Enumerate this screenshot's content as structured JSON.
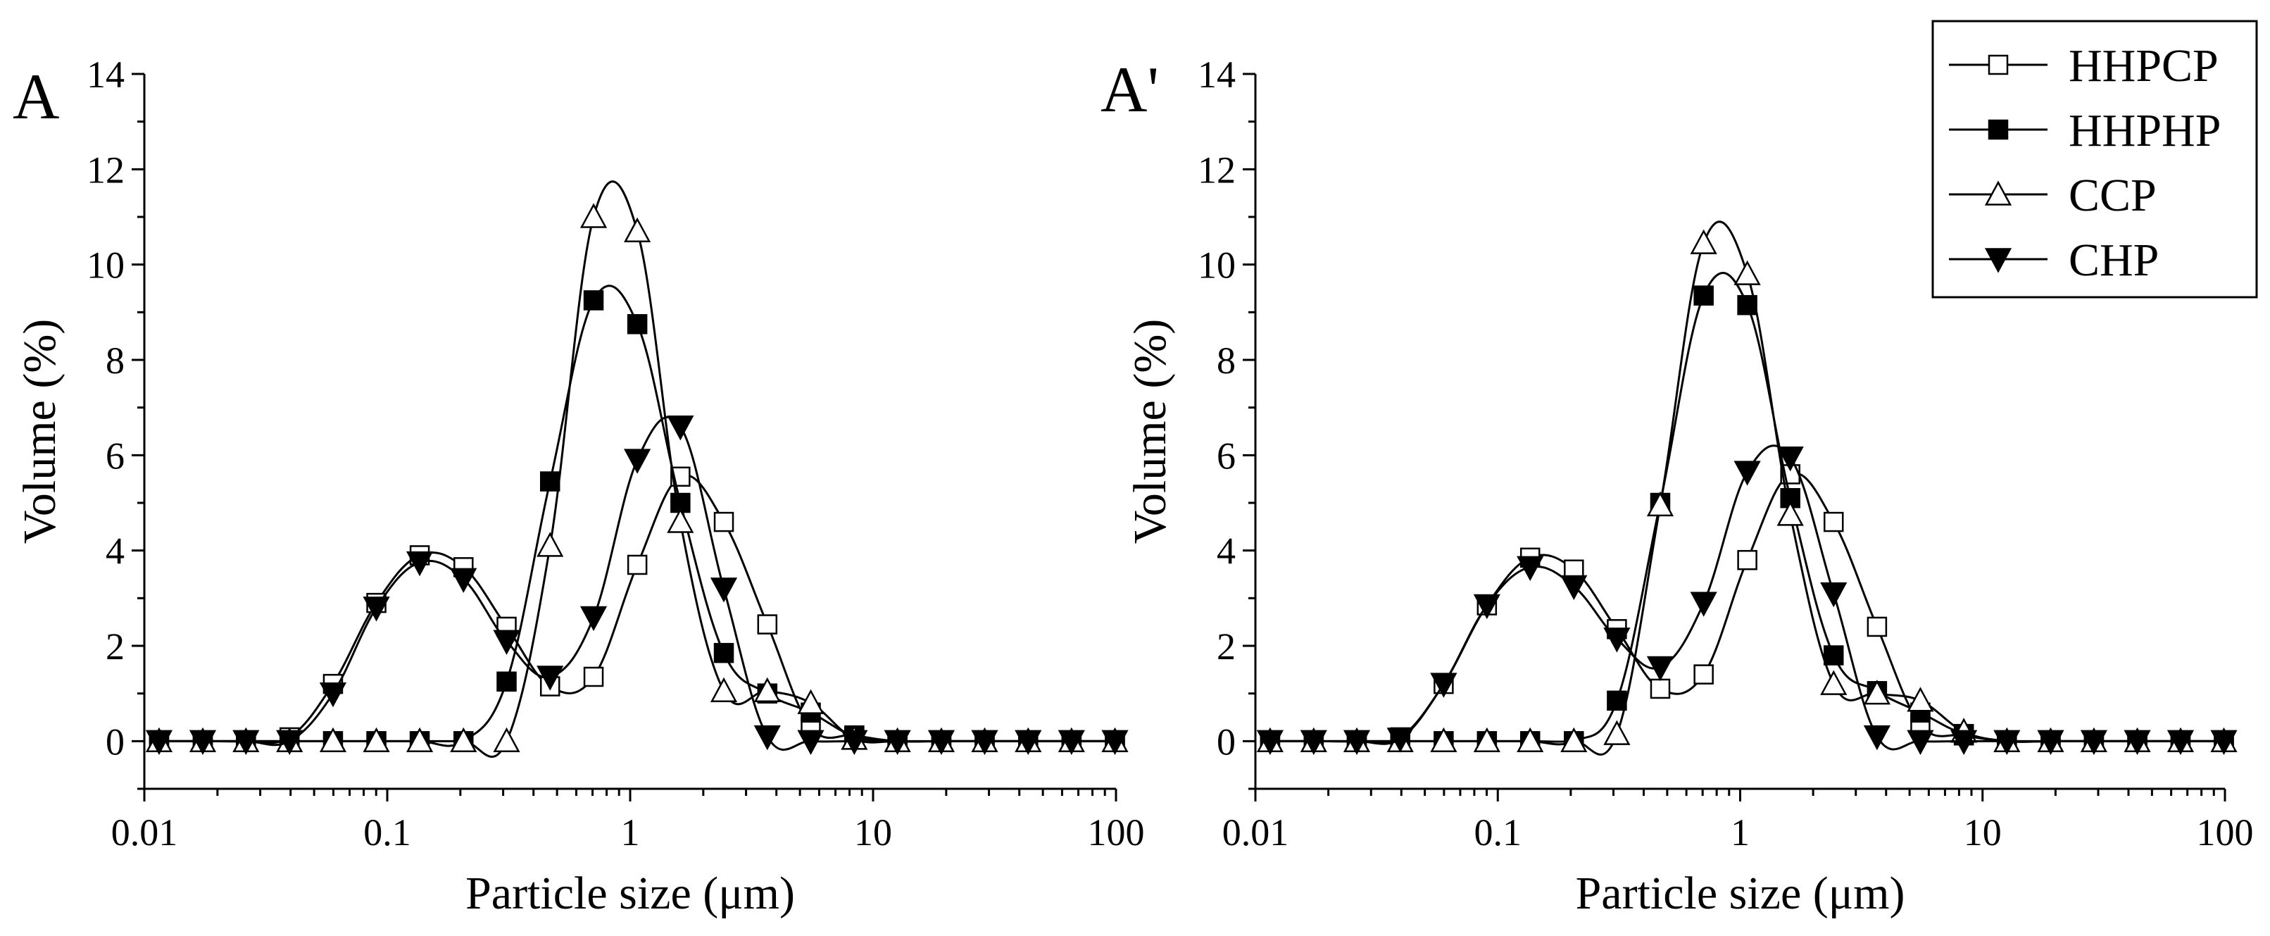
{
  "chart_data": [
    {
      "type": "line",
      "panel_label": "A",
      "xscale": "log",
      "xlim": [
        0.01,
        100
      ],
      "ylim": [
        -1,
        14
      ],
      "xlabel": "Particle size (μm)",
      "ylabel": "Volume (%)",
      "x_ticks": [
        0.01,
        0.1,
        1,
        10,
        100
      ],
      "x_tick_labels": [
        "0.01",
        "0.1",
        "1",
        "10",
        "100"
      ],
      "y_ticks": [
        0,
        2,
        4,
        6,
        8,
        10,
        12,
        14
      ],
      "y_tick_labels": [
        "0",
        "2",
        "4",
        "6",
        "8",
        "10",
        "12",
        "14"
      ],
      "marker_x": [
        0.0115,
        0.0174,
        0.0262,
        0.0396,
        0.0598,
        0.0902,
        0.136,
        0.206,
        0.31,
        0.468,
        0.707,
        1.07,
        1.61,
        2.43,
        3.67,
        5.54,
        8.37,
        12.6,
        19.1,
        28.8,
        43.5,
        65.6,
        99.0
      ],
      "series": [
        {
          "name": "HHPCP",
          "marker": "open-square",
          "values": [
            0,
            0,
            0,
            0.08,
            1.2,
            2.9,
            3.9,
            3.65,
            2.4,
            1.15,
            1.35,
            3.7,
            5.55,
            4.6,
            2.45,
            0.3,
            0.12,
            0,
            0,
            0,
            0,
            0,
            0
          ]
        },
        {
          "name": "HHPHP",
          "marker": "filled-square",
          "values": [
            0,
            0,
            0,
            0,
            0,
            0,
            0,
            0,
            1.25,
            5.45,
            9.25,
            8.75,
            5.0,
            1.85,
            1.0,
            0.6,
            0.1,
            0,
            0,
            0,
            0,
            0,
            0
          ]
        },
        {
          "name": "CCP",
          "marker": "open-triangle-up",
          "values": [
            0,
            0,
            0,
            0,
            0,
            0,
            0,
            0,
            0,
            4.1,
            11.0,
            10.7,
            4.6,
            1.05,
            1.05,
            0.8,
            0.05,
            0,
            0,
            0,
            0,
            0,
            0
          ]
        },
        {
          "name": "CHP",
          "marker": "filled-triangle-down",
          "values": [
            0,
            0,
            0,
            0,
            1.0,
            2.8,
            3.75,
            3.4,
            2.1,
            1.35,
            2.6,
            5.9,
            6.6,
            3.2,
            0.1,
            0,
            0,
            0,
            0,
            0,
            0,
            0,
            0
          ]
        }
      ]
    },
    {
      "type": "line",
      "panel_label": "A'",
      "xscale": "log",
      "xlim": [
        0.01,
        100
      ],
      "ylim": [
        -1,
        14
      ],
      "xlabel": "Particle size (μm)",
      "ylabel": "Volume (%)",
      "x_ticks": [
        0.01,
        0.1,
        1,
        10,
        100
      ],
      "x_tick_labels": [
        "0.01",
        "0.1",
        "1",
        "10",
        "100"
      ],
      "y_ticks": [
        0,
        2,
        4,
        6,
        8,
        10,
        12,
        14
      ],
      "y_tick_labels": [
        "0",
        "2",
        "4",
        "6",
        "8",
        "10",
        "12",
        "14"
      ],
      "marker_x": [
        0.0115,
        0.0174,
        0.0262,
        0.0396,
        0.0598,
        0.0902,
        0.136,
        0.206,
        0.31,
        0.468,
        0.707,
        1.07,
        1.61,
        2.43,
        3.67,
        5.54,
        8.37,
        12.6,
        19.1,
        28.8,
        43.5,
        65.6,
        99.0
      ],
      "series": [
        {
          "name": "HHPCP",
          "marker": "open-square",
          "values": [
            0,
            0,
            0,
            0.08,
            1.2,
            2.85,
            3.85,
            3.6,
            2.35,
            1.1,
            1.4,
            3.8,
            5.6,
            4.6,
            2.4,
            0.35,
            0.12,
            0,
            0,
            0,
            0,
            0,
            0
          ]
        },
        {
          "name": "HHPHP",
          "marker": "filled-square",
          "values": [
            0,
            0,
            0,
            0,
            0,
            0,
            0,
            0,
            0.85,
            5.0,
            9.35,
            9.15,
            5.1,
            1.8,
            1.05,
            0.6,
            0.15,
            0,
            0,
            0,
            0,
            0,
            0
          ]
        },
        {
          "name": "CCP",
          "marker": "open-triangle-up",
          "values": [
            0,
            0,
            0,
            0,
            0,
            0,
            0,
            0,
            0.15,
            4.95,
            10.45,
            9.8,
            4.75,
            1.2,
            1.0,
            0.85,
            0.2,
            0,
            0,
            0,
            0,
            0,
            0
          ]
        },
        {
          "name": "CHP",
          "marker": "filled-triangle-down",
          "values": [
            0,
            0,
            0,
            0.05,
            1.2,
            2.85,
            3.65,
            3.25,
            2.15,
            1.55,
            2.9,
            5.65,
            5.95,
            3.1,
            0.1,
            0,
            0,
            0,
            0,
            0,
            0,
            0,
            0
          ]
        }
      ]
    }
  ],
  "legend": {
    "placement": "top-right",
    "entries": [
      "HHPCP",
      "HHPHP",
      "CCP",
      "CHP"
    ]
  }
}
